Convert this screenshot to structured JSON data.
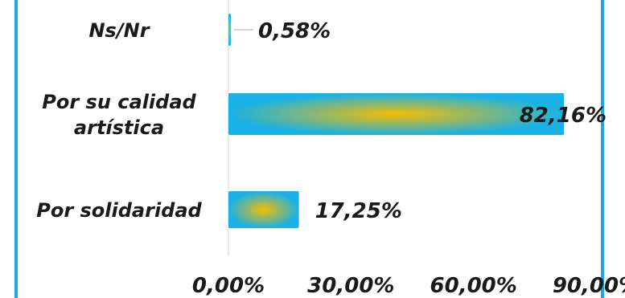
{
  "chart_data": {
    "type": "bar",
    "orientation": "horizontal",
    "categories": [
      "Ns/Nr",
      "Por su calidad artística",
      "Por solidaridad"
    ],
    "category_label_lines": [
      [
        "Ns/Nr"
      ],
      [
        "Por su calidad",
        "artística"
      ],
      [
        "Por solidaridad"
      ]
    ],
    "values": [
      0.58,
      82.16,
      17.25
    ],
    "value_labels": [
      "0,58%",
      "82,16%",
      "17,25%"
    ],
    "xlim": [
      0,
      90
    ],
    "x_ticks": [
      0,
      30,
      60,
      90
    ],
    "x_tick_labels": [
      "0,00%",
      "30,00%",
      "60,00%",
      "90,00%"
    ],
    "grid": false,
    "legend": "none",
    "colors": {
      "frame": "#1ea7e4",
      "bar_edge": "#19b1e6",
      "bar_center": "#f7bd00",
      "axis": "#d0d0d0",
      "leader": "#aaaaaa"
    }
  }
}
